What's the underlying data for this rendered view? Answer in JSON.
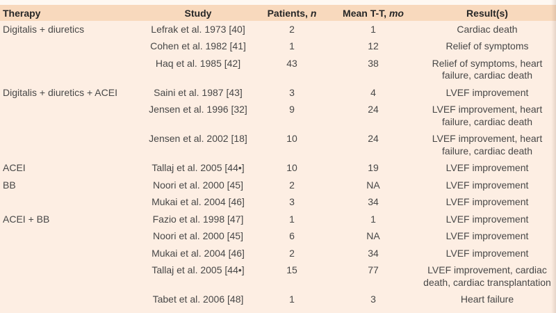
{
  "colors": {
    "page_bg": "#fdeee3",
    "top_strip": "#fef8f2",
    "header_band": "#f8d9bd",
    "header_text": "#262626",
    "text": "#474747"
  },
  "table": {
    "columns": [
      {
        "key": "therapy",
        "label": "Therapy",
        "italic_suffix": ""
      },
      {
        "key": "study",
        "label": "Study",
        "italic_suffix": ""
      },
      {
        "key": "patients",
        "label": "Patients, ",
        "italic_suffix": "n"
      },
      {
        "key": "mean_tt",
        "label": "Mean T-T, ",
        "italic_suffix": "mo"
      },
      {
        "key": "results",
        "label": "Result(s)",
        "italic_suffix": ""
      }
    ],
    "rows": [
      {
        "therapy": "Digitalis + diuretics",
        "study": "Lefrak et al. 1973 [40]",
        "patients": "2",
        "mean_tt": "1",
        "results": "Cardiac death"
      },
      {
        "therapy": "",
        "study": "Cohen et al. 1982 [41]",
        "patients": "1",
        "mean_tt": "12",
        "results": "Relief of symptoms"
      },
      {
        "therapy": "",
        "study": "Haq et al. 1985 [42]",
        "patients": "43",
        "mean_tt": "38",
        "results": "Relief of symptoms, heart failure, cardiac death"
      },
      {
        "therapy": "Digitalis + diuretics + ACEI",
        "study": "Saini et al. 1987 [43]",
        "patients": "3",
        "mean_tt": "4",
        "results": "LVEF improvement"
      },
      {
        "therapy": "",
        "study": "Jensen et al. 1996 [32]",
        "patients": "9",
        "mean_tt": "24",
        "results": "LVEF improvement, heart failure, cardiac death"
      },
      {
        "therapy": "",
        "study": "Jensen et al. 2002 [18]",
        "patients": "10",
        "mean_tt": "24",
        "results": "LVEF improvement, heart failure, cardiac death"
      },
      {
        "therapy": "ACEI",
        "study": "Tallaj et al. 2005 [44•]",
        "patients": "10",
        "mean_tt": "19",
        "results": "LVEF improvement"
      },
      {
        "therapy": "BB",
        "study": "Noori et al. 2000 [45]",
        "patients": "2",
        "mean_tt": "NA",
        "results": "LVEF improvement"
      },
      {
        "therapy": "",
        "study": "Mukai et al. 2004 [46]",
        "patients": "3",
        "mean_tt": "34",
        "results": "LVEF improvement"
      },
      {
        "therapy": "ACEI + BB",
        "study": "Fazio et al. 1998 [47]",
        "patients": "1",
        "mean_tt": "1",
        "results": "LVEF improvement"
      },
      {
        "therapy": "",
        "study": "Noori et al. 2000 [45]",
        "patients": "6",
        "mean_tt": "NA",
        "results": "LVEF improvement"
      },
      {
        "therapy": "",
        "study": "Mukai et al. 2004 [46]",
        "patients": "2",
        "mean_tt": "34",
        "results": "LVEF improvement"
      },
      {
        "therapy": "",
        "study": "Tallaj et al. 2005 [44•]",
        "patients": "15",
        "mean_tt": "77",
        "results": "LVEF improvement, cardiac death, cardiac transplantation"
      },
      {
        "therapy": "",
        "study": "Tabet et al. 2006 [48]",
        "patients": "1",
        "mean_tt": "3",
        "results": "Heart failure"
      }
    ]
  }
}
